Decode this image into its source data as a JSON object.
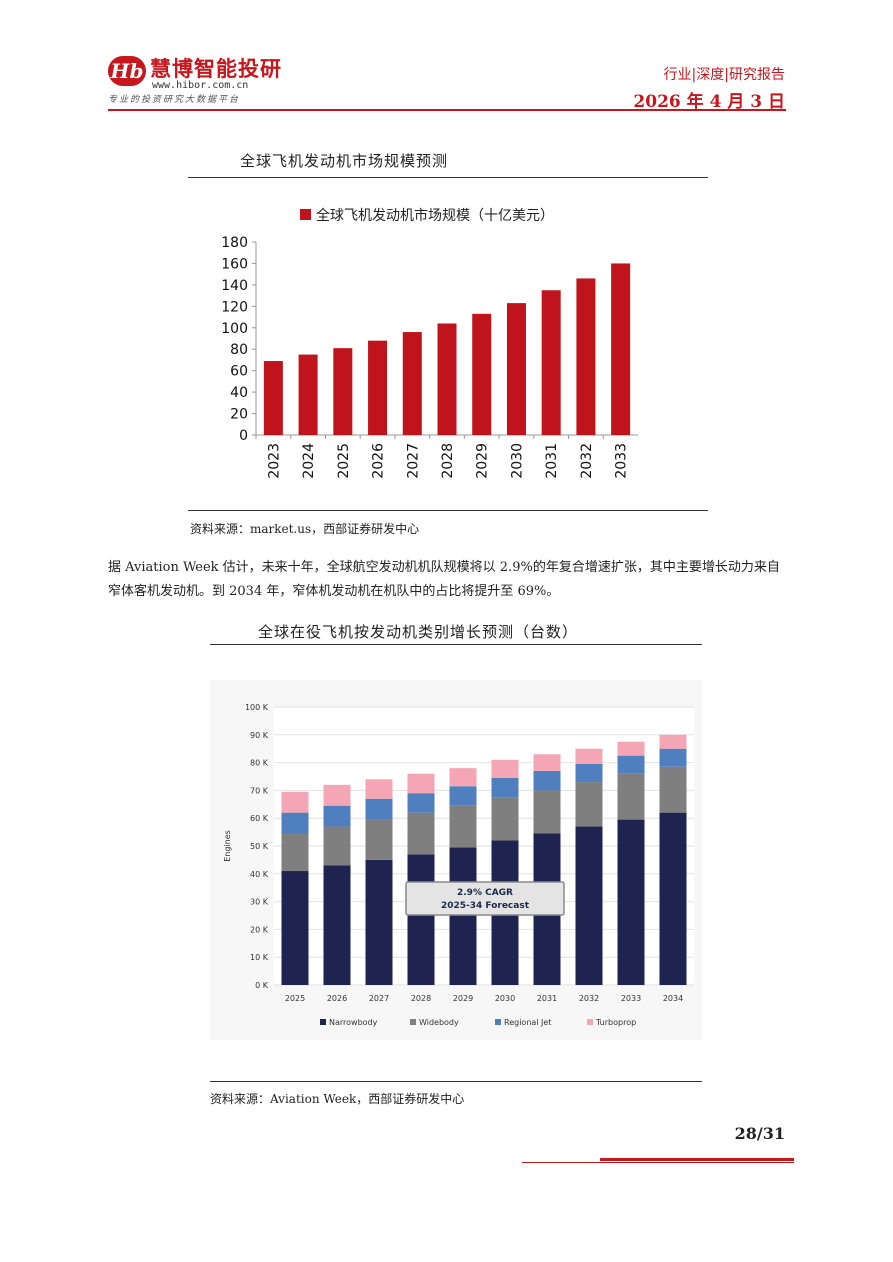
{
  "header": {
    "logo_mark": "Hb",
    "brand_name": "慧博智能投研",
    "brand_url": "www.hibor.com.cn",
    "brand_slogan": "专业的投资研究大数据平台",
    "report_type": "行业|深度|研究报告",
    "report_date": "2026 年 4 月 3 日"
  },
  "chart1": {
    "title": "全球飞机发动机市场规模预测",
    "source": "资料来源：market.us，西部证券研发中心"
  },
  "paragraph": "据 Aviation Week 估计，未来十年，全球航空发动机机队规模将以 2.9%的年复合增速扩张，其中主要增长动力来自窄体客机发动机。到 2034 年，窄体机发动机在机队中的占比将提升至 69%。",
  "chart2": {
    "title": "全球在役飞机按发动机类别增长预测（台数）",
    "source": "资料来源：Aviation Week，西部证券研发中心"
  },
  "page_number": "28/31",
  "chart_data": [
    {
      "type": "bar",
      "categories": [
        "2023",
        "2024",
        "2025",
        "2026",
        "2027",
        "2028",
        "2029",
        "2030",
        "2031",
        "2032",
        "2033"
      ],
      "series": [
        {
          "name": "全球飞机发动机市场规模（十亿美元）",
          "values": [
            69,
            75,
            81,
            88,
            96,
            104,
            113,
            123,
            135,
            146,
            160
          ],
          "color": "#c0141c"
        }
      ],
      "ylim": [
        0,
        180
      ],
      "yticks": [
        0,
        20,
        40,
        60,
        80,
        100,
        120,
        140,
        160,
        180
      ],
      "legend": "top",
      "grid": false
    },
    {
      "type": "bar",
      "stacked": true,
      "categories": [
        "2025",
        "2026",
        "2027",
        "2028",
        "2029",
        "2030",
        "2031",
        "2032",
        "2033",
        "2034"
      ],
      "series": [
        {
          "name": "Narrowbody",
          "values": [
            41,
            43,
            45,
            47,
            49.5,
            52,
            54.5,
            57,
            59.5,
            62
          ],
          "color": "#1f2350"
        },
        {
          "name": "Widebody",
          "values": [
            13.5,
            14,
            14.5,
            15,
            15,
            15.5,
            15.5,
            16,
            16.5,
            16.5
          ],
          "color": "#7f7f7f"
        },
        {
          "name": "Regional Jet",
          "values": [
            7.5,
            7.5,
            7.5,
            7,
            7,
            7,
            7,
            6.5,
            6.5,
            6.5
          ],
          "color": "#4f7fbf"
        },
        {
          "name": "Turboprop",
          "values": [
            7.5,
            7.5,
            7,
            7,
            6.5,
            6.5,
            6,
            5.5,
            5,
            5
          ],
          "color": "#f4a6b4"
        }
      ],
      "ylabel": "Engines",
      "ylim": [
        0,
        100
      ],
      "yticks": [
        "0 K",
        "10 K",
        "20 K",
        "30 K",
        "40 K",
        "50 K",
        "60 K",
        "70 K",
        "80 K",
        "90 K",
        "100 K"
      ],
      "annotation": [
        "2.9% CAGR",
        "2025-34 Forecast"
      ],
      "legend": "bottom",
      "grid": true
    }
  ]
}
